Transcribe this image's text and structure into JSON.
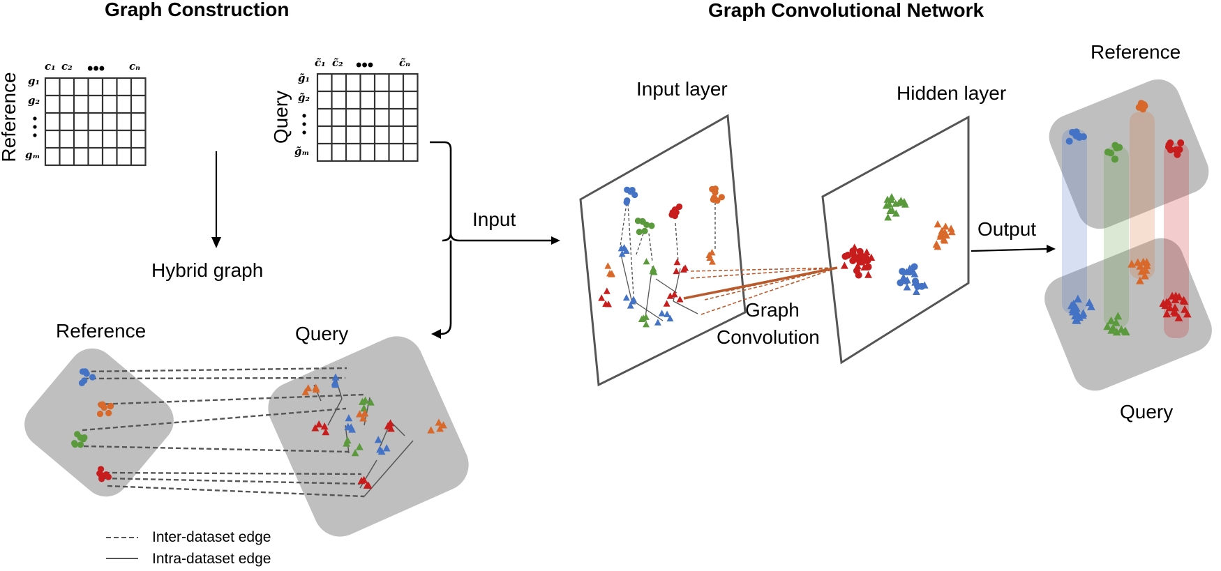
{
  "titles": {
    "graph_construction": "Graph Construction",
    "gcn": "Graph Convolutional Network"
  },
  "reference_matrix": {
    "side_label": "Reference",
    "col_labels": [
      "c₁",
      "c₂",
      "•••",
      "cₙ"
    ],
    "row_labels": [
      "g₁",
      "g₂",
      "gₘ"
    ]
  },
  "query_matrix": {
    "side_label": "Query",
    "col_labels": [
      "c̃₁",
      "c̃₂",
      "•••",
      "c̃ₙ"
    ],
    "row_labels": [
      "g̃₁",
      "g̃₂",
      "g̃ₘ"
    ]
  },
  "labels": {
    "hybrid_graph": "Hybrid graph",
    "input": "Input",
    "hybrid_reference": "Reference",
    "hybrid_query": "Query",
    "input_layer": "Input layer",
    "hidden_layer": "Hidden layer",
    "graph_convolution_1": "Graph",
    "graph_convolution_2": "Convolution",
    "output": "Output",
    "output_reference": "Reference",
    "output_query": "Query"
  },
  "legend": [
    {
      "label": "Inter-dataset edge",
      "style": "dashed"
    },
    {
      "label": "Intra-dataset edge",
      "style": "solid"
    }
  ],
  "colors": {
    "blue": "#4472c4",
    "orange": "#d8692a",
    "green": "#5a9a3c",
    "red": "#c81d1d",
    "panel": "#bfbfbf",
    "graph_convolution_edge": "#b95a2c"
  },
  "cell_types": [
    "blue",
    "orange",
    "green",
    "red"
  ]
}
